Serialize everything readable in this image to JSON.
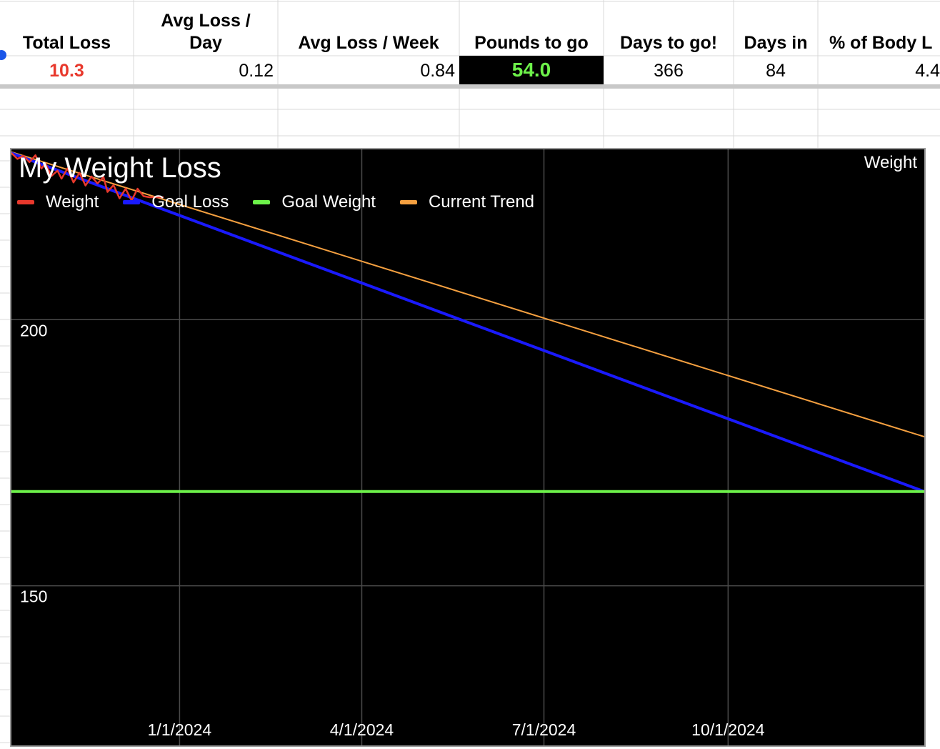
{
  "summary": {
    "headers": [
      "Total Loss",
      "Avg Loss / Day",
      "Avg Loss / Week",
      "Pounds to go",
      "Days to go!",
      "Days in",
      "% of Body L"
    ],
    "values": [
      "10.3",
      "0.12",
      "0.84",
      "54.0",
      "366",
      "84",
      "4.4"
    ],
    "colors": {
      "total_loss": "#e8382c",
      "pounds_to_go_text": "#6df24a",
      "pounds_to_go_bg": "#000000"
    }
  },
  "chart_data": {
    "type": "line",
    "title": "My Weight Loss",
    "series_label": "Weight",
    "x_axis": {
      "type": "date",
      "range": [
        "2023-10-09",
        "2025-01-07"
      ],
      "ticks": [
        "1/1/2024",
        "4/1/2024",
        "7/1/2024",
        "10/1/2024"
      ],
      "tick_dates": [
        "2024-01-01",
        "2024-04-01",
        "2024-07-01",
        "2024-10-01"
      ]
    },
    "y_axis": {
      "range": [
        120,
        232
      ],
      "ticks": [
        "150",
        "200"
      ],
      "tick_values": [
        150,
        200
      ]
    },
    "grid": true,
    "legend": "top-left",
    "series": [
      {
        "name": "Weight",
        "color": "#e8382c",
        "points": [
          [
            "2023-10-09",
            231.3
          ],
          [
            "2023-10-12",
            230.2
          ],
          [
            "2023-10-15",
            230.8
          ],
          [
            "2023-10-18",
            229.6
          ],
          [
            "2023-10-21",
            230.9
          ],
          [
            "2023-10-24",
            228.4
          ],
          [
            "2023-10-26",
            229.3
          ],
          [
            "2023-10-29",
            227.0
          ],
          [
            "2023-11-01",
            228.0
          ],
          [
            "2023-11-03",
            226.5
          ],
          [
            "2023-11-06",
            228.4
          ],
          [
            "2023-11-09",
            225.8
          ],
          [
            "2023-11-12",
            227.6
          ],
          [
            "2023-11-15",
            225.2
          ],
          [
            "2023-11-18",
            226.9
          ],
          [
            "2023-11-21",
            225.6
          ],
          [
            "2023-11-24",
            226.8
          ],
          [
            "2023-11-26",
            224.0
          ],
          [
            "2023-11-29",
            225.3
          ],
          [
            "2023-12-02",
            222.8
          ],
          [
            "2023-12-05",
            224.6
          ],
          [
            "2023-12-08",
            222.4
          ],
          [
            "2023-12-11",
            224.6
          ],
          [
            "2023-12-14",
            223.2
          ],
          [
            "2023-12-17",
            223.0
          ],
          [
            "2023-12-24",
            223.0
          ]
        ]
      },
      {
        "name": "Goal Loss",
        "color": "#1a1aff",
        "points": [
          [
            "2023-10-09",
            231.3
          ],
          [
            "2025-01-07",
            167.7
          ]
        ]
      },
      {
        "name": "Goal Weight",
        "color": "#6df24a",
        "points": [
          [
            "2023-10-09",
            167.7
          ],
          [
            "2025-01-07",
            167.7
          ]
        ]
      },
      {
        "name": "Current Trend",
        "color": "#f5a040",
        "points": [
          [
            "2023-10-09",
            231.5
          ],
          [
            "2025-01-07",
            178.0
          ]
        ]
      }
    ]
  }
}
